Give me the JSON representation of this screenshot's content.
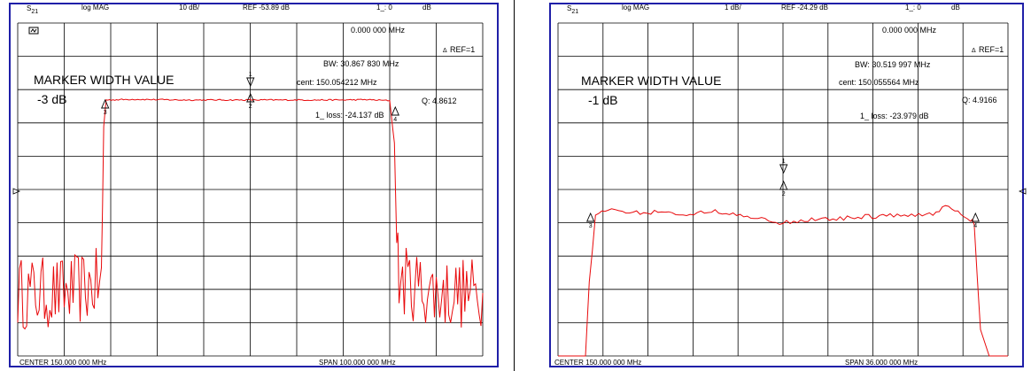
{
  "chart_data": [
    {
      "type": "line",
      "header": {
        "param": "S21",
        "format": "log MAG",
        "scale": "10 dB/",
        "ref": "REF -53.89 dB",
        "marker_readout": "1_: 0",
        "marker_unit": "dB"
      },
      "icon": "trace-icon",
      "marker_freq": "0.000 000 MHz",
      "ref_marker": "REF=1",
      "stats": {
        "bw": "BW:   30.867 830 MHz",
        "cent": "cent:  150.054212 MHz",
        "q": "Q: 4.8612",
        "loss": "1_ loss:  -24.137 dB"
      },
      "title": "MARKER WIDTH VALUE",
      "width_value": "-3 dB",
      "center_label": "CENTER  150.000 000 MHz",
      "span_label": "SPAN  100.000 000 MHz",
      "marker_labels": [
        "3",
        "1",
        "2",
        "4"
      ],
      "x_range": [
        100,
        200
      ],
      "y_range": [
        -133.89,
        -33.89
      ],
      "trace_color": "#e8090b",
      "x": [
        100.0,
        110.0,
        118.0,
        118.5,
        119.0,
        125.0,
        130.0,
        135.0,
        140.0,
        145.0,
        150.0,
        155.0,
        160.0,
        165.0,
        170.0,
        175.0,
        180.0,
        181.0,
        181.5,
        182.0,
        190.0,
        200.0
      ],
      "y": [
        -115.0,
        -115.0,
        -112.0,
        -65.0,
        -57.0,
        -56.8,
        -56.9,
        -57.0,
        -57.0,
        -57.0,
        -57.0,
        -57.0,
        -57.0,
        -57.0,
        -57.0,
        -56.9,
        -57.2,
        -70.0,
        -100.0,
        -111.0,
        -115.0,
        -115.0
      ]
    },
    {
      "type": "line",
      "header": {
        "param": "S21",
        "format": "log MAG",
        "scale": "1 dB/",
        "ref": "REF -24.29 dB",
        "marker_readout": "1_: 0",
        "marker_unit": "dB"
      },
      "marker_freq": "0.000 000 MHz",
      "ref_marker": "REF=1",
      "stats": {
        "bw": "BW:   30.519 997 MHz",
        "cent": "cent:  150.055564 MHz",
        "q": "Q: 4.9166",
        "loss": "1_ loss:  -23.979 dB"
      },
      "title": "MARKER WIDTH VALUE",
      "width_value": "-1 dB",
      "center_label": "CENTER  150.000 000 MHz",
      "span_label": "SPAN  36.000 000 MHz",
      "marker_labels": [
        "3",
        "1",
        "2",
        "4"
      ],
      "x_range": [
        132,
        168
      ],
      "y_range": [
        -34.29,
        -24.29
      ],
      "trace_color": "#e8090b",
      "x": [
        132.0,
        134.2,
        134.5,
        135.0,
        136.0,
        138.0,
        140.0,
        142.0,
        144.0,
        146.0,
        148.0,
        150.0,
        152.0,
        154.0,
        156.0,
        158.0,
        160.0,
        162.0,
        163.0,
        164.0,
        165.0,
        165.3,
        165.8,
        166.5,
        168.0
      ],
      "y": [
        -34.29,
        -34.29,
        -32.0,
        -30.1,
        -29.9,
        -30.0,
        -29.95,
        -30.05,
        -29.95,
        -30.0,
        -30.15,
        -30.3,
        -30.2,
        -30.2,
        -30.1,
        -30.1,
        -30.05,
        -30.0,
        -29.8,
        -30.0,
        -30.2,
        -30.3,
        -33.5,
        -34.29,
        -34.29
      ]
    }
  ]
}
